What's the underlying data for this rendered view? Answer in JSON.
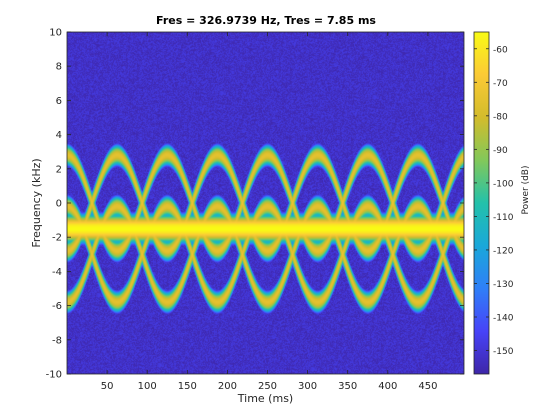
{
  "chart_data": {
    "type": "heatmap",
    "title": "Fres = 326.9739 Hz, Tres = 7.85 ms",
    "xlabel": "Time (ms)",
    "ylabel": "Frequency (kHz)",
    "colorbar_label": "Power (dB)",
    "xlim": [
      0,
      495
    ],
    "ylim": [
      -10,
      10
    ],
    "clim": [
      -157,
      -55
    ],
    "x_ticks": [
      50,
      100,
      150,
      200,
      250,
      300,
      350,
      400,
      450
    ],
    "y_ticks": [
      -10,
      -8,
      -6,
      -4,
      -2,
      0,
      2,
      4,
      6,
      8,
      10
    ],
    "colorbar_ticks": [
      -60,
      -70,
      -80,
      -90,
      -100,
      -110,
      -120,
      -130,
      -140,
      -150
    ],
    "colormap": "parula",
    "colormap_stops": [
      "#3e26a8",
      "#4743f8",
      "#2f7ff8",
      "#1aa8d9",
      "#23c1aa",
      "#82c85a",
      "#d3bc2b",
      "#fbca36",
      "#f9fb15"
    ],
    "noise_floor_db": -152,
    "signal_peak_db": -55,
    "components": [
      {
        "name": "constant tone",
        "frequency_khz": -1.5,
        "power_db": -55
      },
      {
        "name": "sinusoidal FM tone A",
        "center_khz": 0,
        "amplitude_khz": 2.8,
        "period_ms": 125,
        "phase": 0,
        "power_db": -75
      },
      {
        "name": "sinusoidal FM tone B",
        "center_khz": 0,
        "amplitude_khz": 2.8,
        "period_ms": 125,
        "phase": 0.5,
        "power_db": -75
      },
      {
        "name": "sinusoidal FM tone C",
        "center_khz": -3,
        "amplitude_khz": 2.8,
        "period_ms": 125,
        "phase": 0,
        "power_db": -75
      },
      {
        "name": "sinusoidal FM tone D",
        "center_khz": -3,
        "amplitude_khz": 2.8,
        "period_ms": 125,
        "phase": 0.5,
        "power_db": -75
      }
    ]
  }
}
